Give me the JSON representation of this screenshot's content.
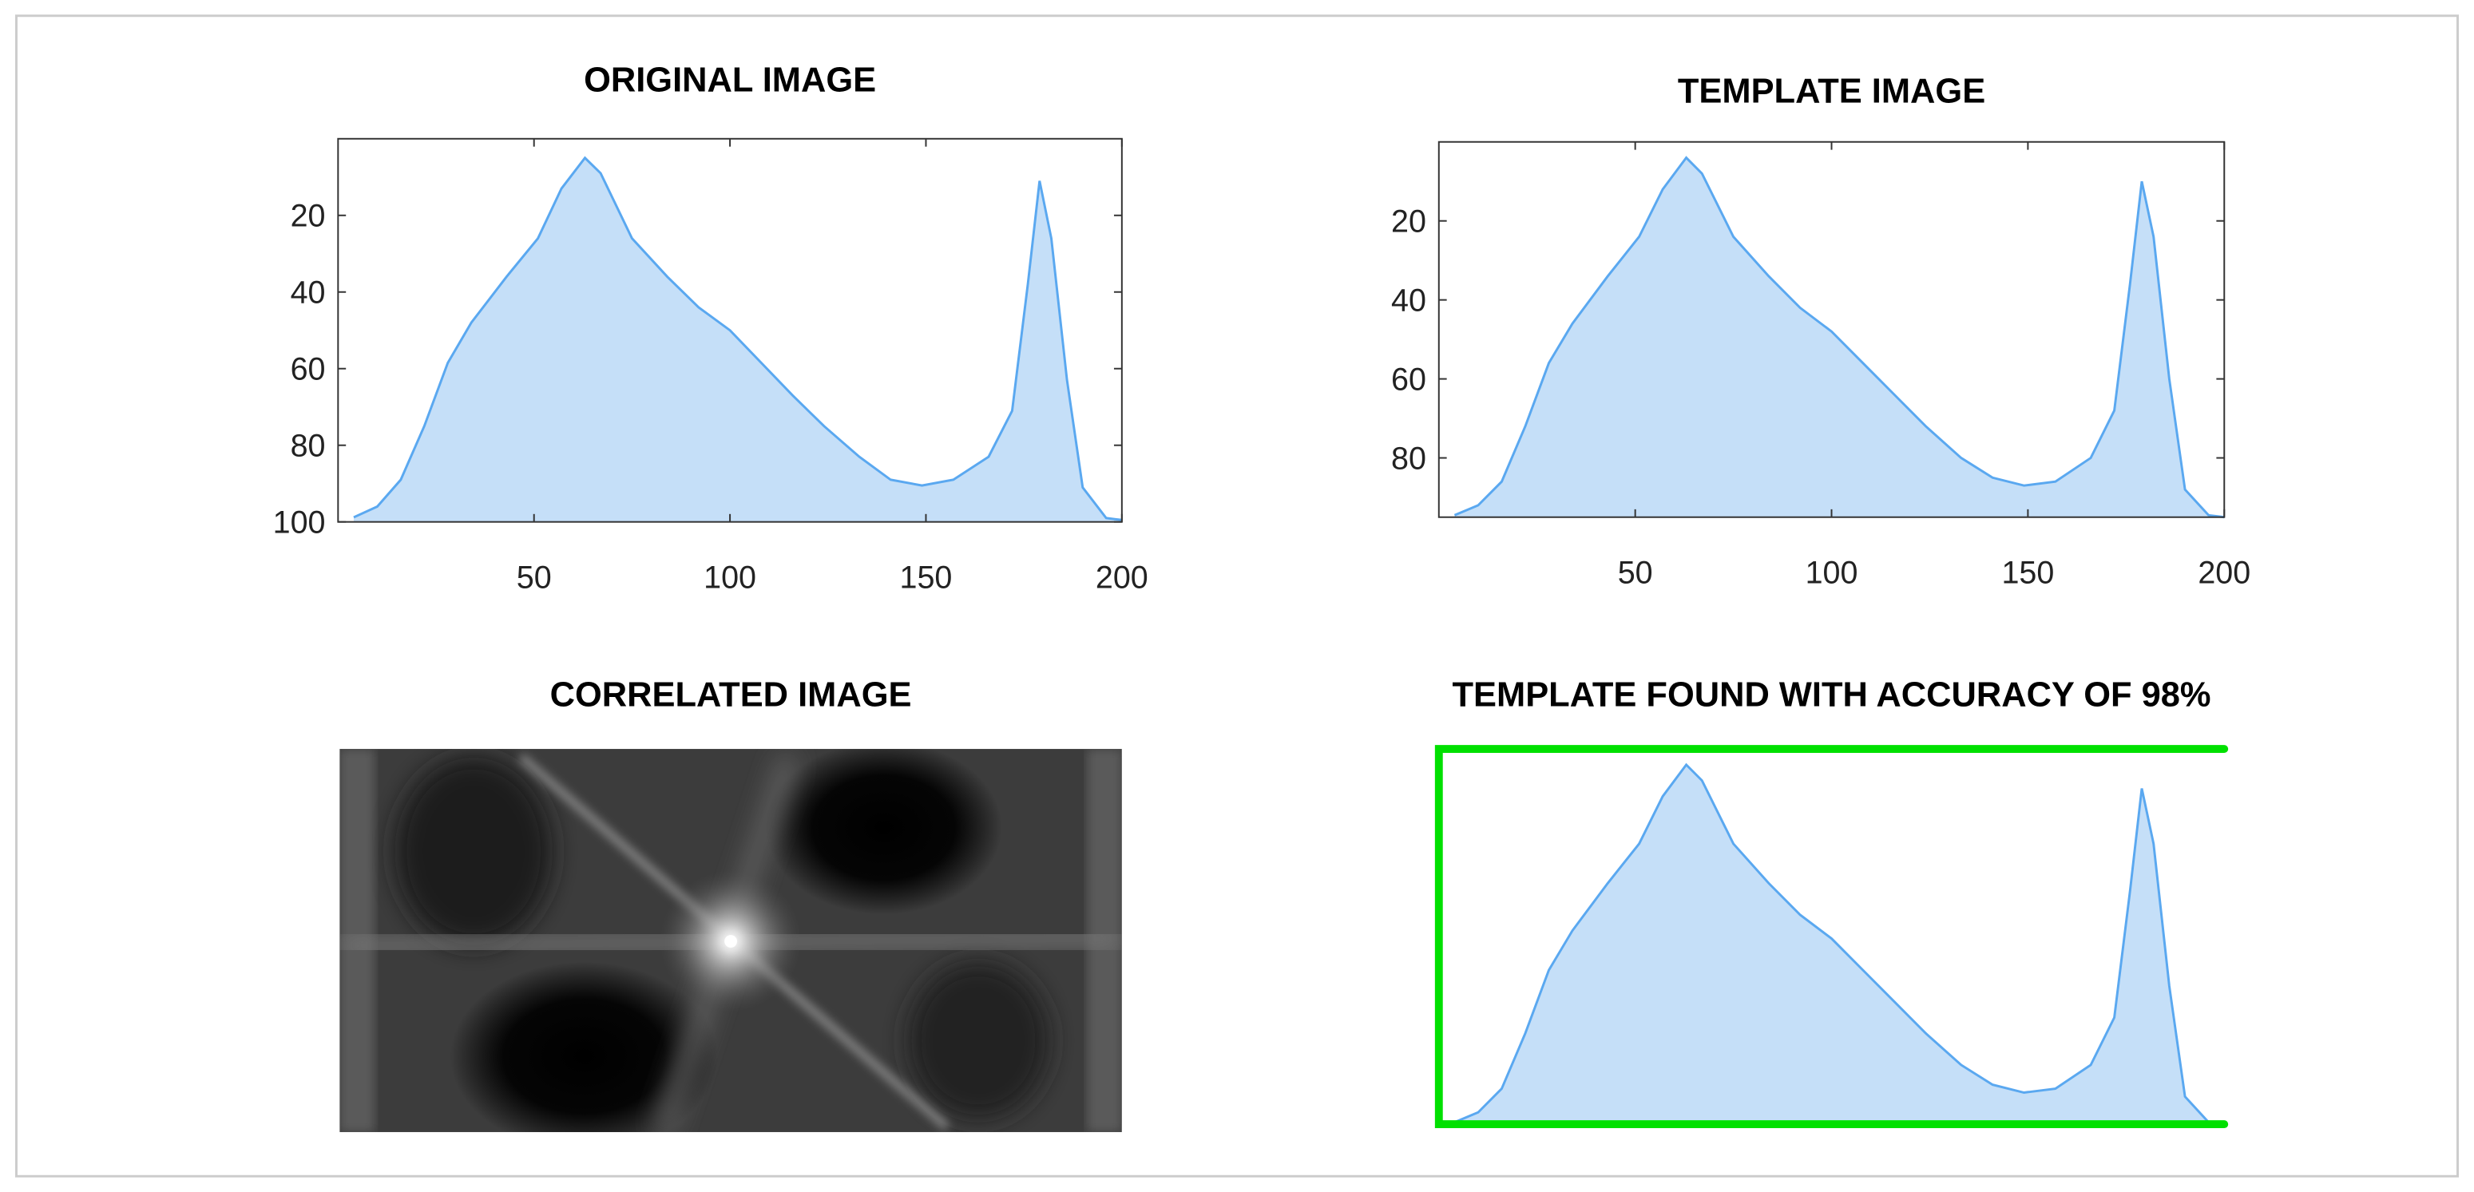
{
  "chart_data": [
    {
      "type": "area",
      "title": "ORIGINAL IMAGE",
      "color": "#5aa8f0",
      "fill": "#c5dff8",
      "x": [
        4,
        10,
        16,
        22,
        28,
        34,
        43,
        51,
        57,
        63,
        67,
        75,
        84,
        92,
        100,
        108,
        116,
        124,
        133,
        141,
        149,
        157,
        166,
        172,
        176,
        179,
        182,
        186,
        190,
        196,
        200
      ],
      "values": [
        98.8,
        96,
        89,
        75,
        58.5,
        48,
        36,
        26,
        13,
        5,
        9,
        26,
        36,
        44,
        50,
        58.5,
        67,
        75,
        83,
        89,
        90.5,
        89,
        83,
        71,
        38,
        11,
        26,
        63,
        91,
        99,
        99.5
      ],
      "xlim": [
        0,
        200
      ],
      "ylim": [
        0,
        100
      ],
      "xticks": [
        50,
        100,
        150,
        200
      ],
      "yticks": [
        20,
        40,
        60,
        80,
        100
      ],
      "y_reversed": true
    },
    {
      "type": "area",
      "title": "TEMPLATE IMAGE",
      "color": "#5aa8f0",
      "fill": "#c5dff8",
      "x": [
        4,
        10,
        16,
        22,
        28,
        34,
        43,
        51,
        57,
        63,
        67,
        75,
        84,
        92,
        100,
        108,
        116,
        124,
        133,
        141,
        149,
        157,
        166,
        172,
        176,
        179,
        182,
        186,
        190,
        196,
        200
      ],
      "values": [
        94.5,
        92,
        86,
        72,
        56,
        46,
        34,
        24,
        12,
        4,
        8,
        24,
        34,
        42,
        48,
        56,
        64,
        72,
        80,
        85,
        87,
        86,
        80,
        68,
        36,
        10,
        24,
        60,
        88,
        94.5,
        95
      ],
      "xlim": [
        0,
        200
      ],
      "ylim": [
        0,
        95
      ],
      "xticks": [
        50,
        100,
        150,
        200
      ],
      "yticks": [
        20,
        40,
        60,
        80
      ],
      "y_reversed": true
    },
    {
      "type": "image",
      "title": "CORRELATED IMAGE"
    },
    {
      "type": "area",
      "title": "TEMPLATE FOUND WITH ACCURACY OF 98%",
      "color": "#5aa8f0",
      "fill": "#c5dff8",
      "frame_color": "#00e000",
      "x": [
        4,
        10,
        16,
        22,
        28,
        34,
        43,
        51,
        57,
        63,
        67,
        75,
        84,
        92,
        100,
        108,
        116,
        124,
        133,
        141,
        149,
        157,
        166,
        172,
        176,
        179,
        182,
        186,
        190,
        196,
        200
      ],
      "values": [
        94.5,
        92,
        86,
        72,
        56,
        46,
        34,
        24,
        12,
        4,
        8,
        24,
        34,
        42,
        48,
        56,
        64,
        72,
        80,
        85,
        87,
        86,
        80,
        68,
        36,
        10,
        24,
        60,
        88,
        94.5,
        95
      ],
      "xlim": [
        0,
        200
      ],
      "ylim": [
        0,
        95
      ],
      "y_reversed": true
    }
  ]
}
